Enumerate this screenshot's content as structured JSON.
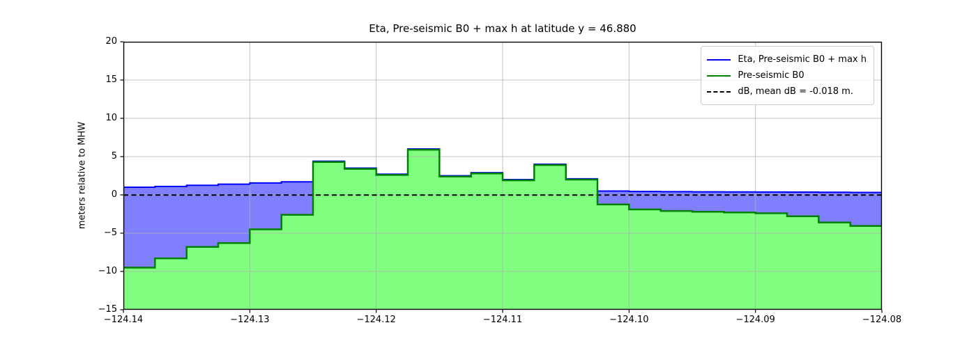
{
  "figure": {
    "kind": "matplotlib-style plot of coastal transect (eta and pre-seismic bathymetry vs longitude)"
  },
  "chart_data": {
    "type": "step-area",
    "title": "Eta, Pre-seismic B0 + max h at latitude y = 46.880",
    "xlabel": "",
    "ylabel": "meters relative to MHW",
    "xlim": [
      -124.14,
      -124.08
    ],
    "ylim": [
      -15,
      20
    ],
    "grid": true,
    "legend_position": "upper right",
    "xticks": {
      "values": [
        -124.14,
        -124.13,
        -124.12,
        -124.11,
        -124.1,
        -124.09,
        -124.08
      ],
      "labels": [
        "−124.14",
        "−124.13",
        "−124.12",
        "−124.11",
        "−124.10",
        "−124.09",
        "−124.08"
      ]
    },
    "yticks": {
      "values": [
        20,
        15,
        10,
        5,
        0,
        -5,
        -10,
        -15
      ],
      "labels": [
        "20",
        "15",
        "10",
        "5",
        "0",
        "−5",
        "−10",
        "−15"
      ]
    },
    "cell_edges_longitude": [
      -124.14,
      -124.1375,
      -124.135,
      -124.1325,
      -124.13,
      -124.1275,
      -124.125,
      -124.1225,
      -124.12,
      -124.1175,
      -124.115,
      -124.1125,
      -124.11,
      -124.1075,
      -124.105,
      -124.1025,
      -124.1,
      -124.0975,
      -124.095,
      -124.0925,
      -124.09,
      -124.0875,
      -124.085,
      -124.0825,
      -124.08
    ],
    "series": [
      {
        "name": "Eta, Pre-seismic B0 + max h",
        "style": "step",
        "line_color": "#0000ff",
        "fill_color": "#8080ff",
        "line_width": 2,
        "values": [
          1.0,
          1.1,
          1.25,
          1.4,
          1.55,
          1.7,
          4.4,
          3.5,
          2.7,
          6.0,
          2.5,
          2.9,
          2.0,
          4.0,
          2.1,
          0.5,
          0.45,
          0.42,
          0.4,
          0.38,
          0.37,
          0.36,
          0.34,
          0.32
        ]
      },
      {
        "name": "Pre-seismic B0",
        "style": "step",
        "line_color": "#008000",
        "fill_color": "#80ff80",
        "line_width": 2.5,
        "values": [
          -9.5,
          -8.3,
          -6.8,
          -6.3,
          -4.5,
          -2.6,
          4.3,
          3.4,
          2.6,
          5.9,
          2.4,
          2.8,
          1.9,
          3.9,
          2.0,
          -1.25,
          -1.9,
          -2.1,
          -2.2,
          -2.3,
          -2.4,
          -2.8,
          -3.6,
          -4.05
        ]
      },
      {
        "name": "dB, mean dB = -0.018 m.",
        "style": "hline",
        "line_color": "#000000",
        "dashed": true,
        "dash_pattern": "7,4.5",
        "line_width": 2,
        "value": -0.018
      }
    ],
    "legend": [
      {
        "label": "Eta, Pre-seismic B0 + max h",
        "color": "#0000ff",
        "dashed": false
      },
      {
        "label": "Pre-seismic B0",
        "color": "#008000",
        "dashed": false
      },
      {
        "label": "dB, mean dB = -0.018 m.",
        "color": "#000000",
        "dashed": true
      }
    ],
    "grid_color": "#b0b0b0",
    "frame_color": "#000000"
  }
}
